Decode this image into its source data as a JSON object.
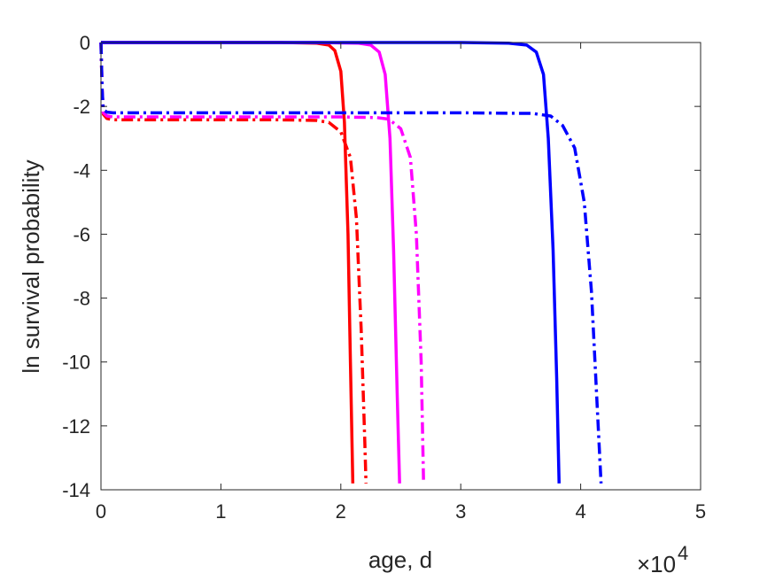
{
  "chart_data": {
    "type": "line",
    "xlabel": "age, d",
    "ylabel": "ln survival probability",
    "xlim": [
      0,
      50000
    ],
    "ylim": [
      -14,
      0
    ],
    "x_ticks": [
      0,
      10000,
      20000,
      30000,
      40000,
      50000
    ],
    "x_tick_labels": [
      "0",
      "1",
      "2",
      "3",
      "4",
      "5"
    ],
    "x_exponent_label": {
      "base": "×10",
      "exponent": "4"
    },
    "y_ticks": [
      0,
      -2,
      -4,
      -6,
      -8,
      -10,
      -12,
      -14
    ],
    "y_tick_labels": [
      "0",
      "-2",
      "-4",
      "-6",
      "-8",
      "-10",
      "-12",
      "-14"
    ],
    "grid": false,
    "series": [
      {
        "color": "#ff0000",
        "style": "solid",
        "x": [
          0,
          15000,
          18000,
          19000,
          19500,
          20000,
          20300,
          20600,
          20800,
          21000
        ],
        "y": [
          0,
          0,
          -0.02,
          -0.08,
          -0.25,
          -0.9,
          -2.5,
          -6.0,
          -10.0,
          -13.8
        ]
      },
      {
        "color": "#ff0000",
        "style": "dashdot",
        "x": [
          0,
          100,
          200,
          500,
          1000,
          5000,
          15000,
          18000,
          19000,
          20000,
          20800,
          21300,
          21700,
          22000,
          22100
        ],
        "y": [
          0,
          -1.5,
          -2.25,
          -2.38,
          -2.42,
          -2.42,
          -2.42,
          -2.44,
          -2.5,
          -2.8,
          -3.6,
          -5.5,
          -9.0,
          -12.5,
          -13.8
        ]
      },
      {
        "color": "#ff00ff",
        "style": "solid",
        "x": [
          0,
          18000,
          21500,
          22500,
          23200,
          23700,
          24100,
          24400,
          24700,
          24900
        ],
        "y": [
          0,
          0,
          -0.02,
          -0.08,
          -0.3,
          -1.0,
          -3.0,
          -6.5,
          -11.0,
          -13.8
        ]
      },
      {
        "color": "#ff00ff",
        "style": "dashdot",
        "x": [
          0,
          100,
          200,
          500,
          1000,
          5000,
          20000,
          23000,
          24000,
          25000,
          25800,
          26300,
          26700,
          26900
        ],
        "y": [
          0,
          -1.5,
          -2.2,
          -2.3,
          -2.33,
          -2.33,
          -2.33,
          -2.35,
          -2.4,
          -2.7,
          -3.6,
          -6.0,
          -10.0,
          -13.8
        ]
      },
      {
        "color": "#0000ff",
        "style": "solid",
        "x": [
          0,
          30000,
          34000,
          35500,
          36300,
          36900,
          37300,
          37700,
          38000,
          38200
        ],
        "y": [
          0,
          0,
          -0.02,
          -0.08,
          -0.3,
          -1.0,
          -3.0,
          -6.5,
          -10.5,
          -13.8
        ]
      },
      {
        "color": "#0000ff",
        "style": "dashdot",
        "x": [
          0,
          100,
          200,
          500,
          1000,
          5000,
          30000,
          36000,
          37500,
          38500,
          39500,
          40300,
          40900,
          41300,
          41700
        ],
        "y": [
          0,
          -1.5,
          -2.1,
          -2.18,
          -2.2,
          -2.2,
          -2.2,
          -2.22,
          -2.3,
          -2.6,
          -3.3,
          -5.0,
          -7.8,
          -10.8,
          -13.8
        ]
      }
    ]
  }
}
